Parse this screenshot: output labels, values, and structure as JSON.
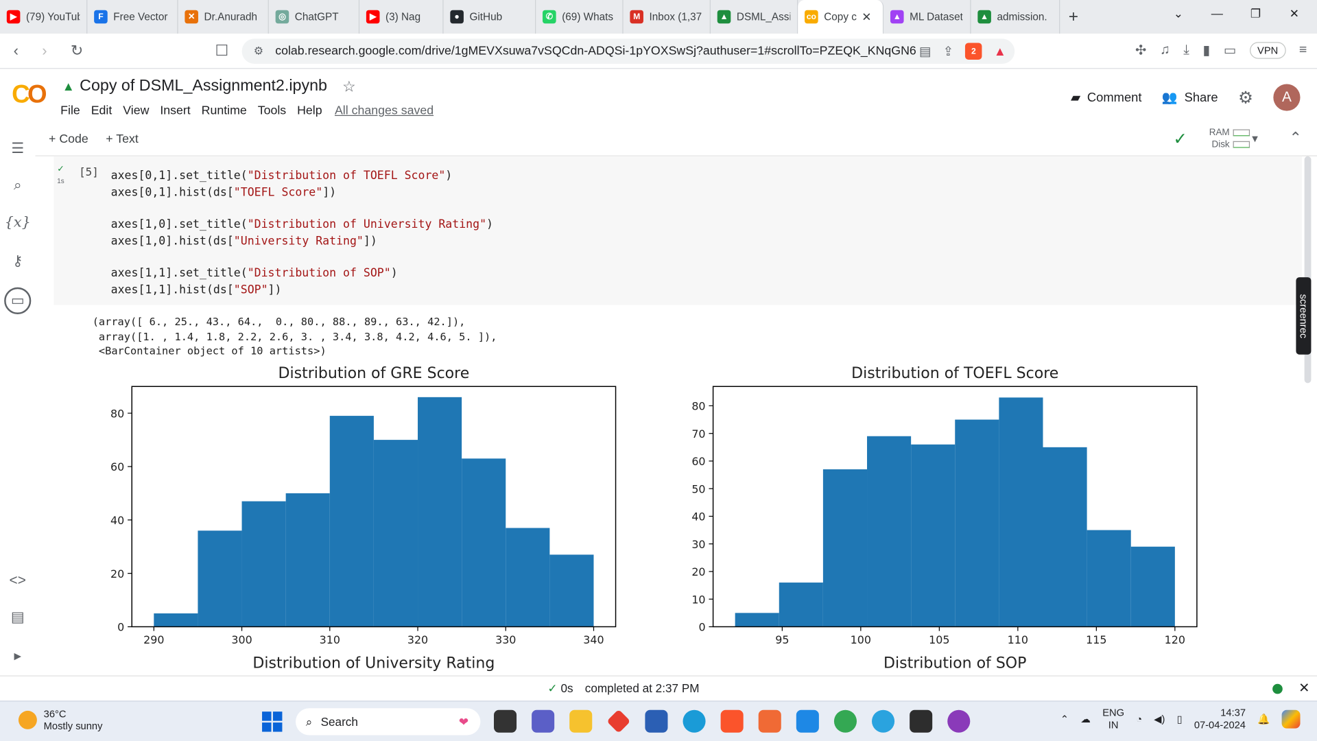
{
  "browser": {
    "tabs": [
      {
        "label": "(79) YouTub",
        "color": "#ff0000",
        "glyph": "▶"
      },
      {
        "label": "Free Vector",
        "color": "#1a73e8",
        "glyph": "F"
      },
      {
        "label": "Dr.Anuradh",
        "color": "#e8710a",
        "glyph": "✕"
      },
      {
        "label": "ChatGPT",
        "color": "#74aa9c",
        "glyph": "◎"
      },
      {
        "label": "(3) Nag",
        "color": "#ff0000",
        "glyph": "▶"
      },
      {
        "label": "GitHub",
        "color": "#24292e",
        "glyph": "●"
      },
      {
        "label": "(69) Whats",
        "color": "#25d366",
        "glyph": "✆"
      },
      {
        "label": "Inbox (1,37",
        "color": "#d93025",
        "glyph": "M"
      },
      {
        "label": "DSML_Assi",
        "color": "#1e8e3e",
        "glyph": "▲"
      },
      {
        "label": "Copy c",
        "color": "#f9ab00",
        "glyph": "co"
      },
      {
        "label": "ML Dataset",
        "color": "#a142f4",
        "glyph": "▲"
      },
      {
        "label": "admission.",
        "color": "#1e8e3e",
        "glyph": "▲"
      }
    ],
    "active_tab": 9,
    "url": "colab.research.google.com/drive/1gMEVXsuwa7vSQCdn-ADQSi-1pYOXSwSj?authuser=1#scrollTo=PZEQK_KNqGN6",
    "brave_count": "2",
    "vpn_label": "VPN"
  },
  "colab": {
    "notebook_title": "Copy of DSML_Assignment2.ipynb",
    "menu": [
      "File",
      "Edit",
      "View",
      "Insert",
      "Runtime",
      "Tools",
      "Help"
    ],
    "saved_status": "All changes saved",
    "comment_label": "Comment",
    "share_label": "Share",
    "avatar_letter": "A",
    "add_code": "+ Code",
    "add_text": "+ Text",
    "ram_label": "RAM",
    "disk_label": "Disk"
  },
  "cell": {
    "exec_count": "[5]",
    "run_time": "1s",
    "code_lines": [
      [
        "axes[0,1].set_title(",
        "\"Distribution of TOEFL Score\"",
        ")"
      ],
      [
        "axes[0,1].hist(ds[",
        "\"TOEFL Score\"",
        "])"
      ],
      null,
      [
        "axes[1,0].set_title(",
        "\"Distribution of University Rating\"",
        ")"
      ],
      [
        "axes[1,0].hist(ds[",
        "\"University Rating\"",
        "])"
      ],
      null,
      [
        "axes[1,1].set_title(",
        "\"Distribution of SOP\"",
        ")"
      ],
      [
        "axes[1,1].hist(ds[",
        "\"SOP\"",
        "])"
      ]
    ],
    "output_lines": [
      "(array([ 6., 25., 43., 64.,  0., 80., 88., 89., 63., 42.]),",
      " array([1. , 1.4, 1.8, 2.2, 2.6, 3. , 3.4, 3.8, 4.2, 4.6, 5. ]),",
      " <BarContainer object of 10 artists>)"
    ]
  },
  "chart_data": [
    {
      "type": "bar",
      "title": "Distribution of GRE Score",
      "bin_edges": [
        290,
        295,
        300,
        305,
        310,
        315,
        320,
        325,
        330,
        335,
        340
      ],
      "values": [
        5,
        36,
        47,
        50,
        79,
        70,
        86,
        63,
        37,
        27
      ],
      "xlim": [
        287.5,
        342.5
      ],
      "ylim": [
        0,
        90
      ],
      "xticks": [
        290,
        300,
        310,
        320,
        330,
        340
      ],
      "yticks": [
        0,
        20,
        40,
        60,
        80
      ],
      "color": "#1f77b4"
    },
    {
      "type": "bar",
      "title": "Distribution of TOEFL Score",
      "bin_edges": [
        92,
        94.8,
        97.6,
        100.4,
        103.2,
        106,
        108.8,
        111.6,
        114.4,
        117.2,
        120
      ],
      "values": [
        5,
        16,
        57,
        69,
        66,
        75,
        83,
        65,
        35,
        29
      ],
      "xlim": [
        90.6,
        121.4
      ],
      "ylim": [
        0,
        87
      ],
      "xticks": [
        95,
        100,
        105,
        110,
        115,
        120
      ],
      "yticks": [
        0,
        10,
        20,
        30,
        40,
        50,
        60,
        70,
        80
      ],
      "color": "#1f77b4"
    },
    {
      "type": "bar",
      "title": "Distribution of University Rating"
    },
    {
      "type": "bar",
      "title": "Distribution of SOP"
    }
  ],
  "status": {
    "elapsed": "0s",
    "completed": "completed at 2:37 PM"
  },
  "taskbar": {
    "temp": "36°C",
    "weather": "Mostly sunny",
    "search": "Search",
    "lang_top": "ENG",
    "lang_bottom": "IN",
    "time": "14:37",
    "date": "07-04-2024"
  },
  "screenrec_label": "screenrec"
}
